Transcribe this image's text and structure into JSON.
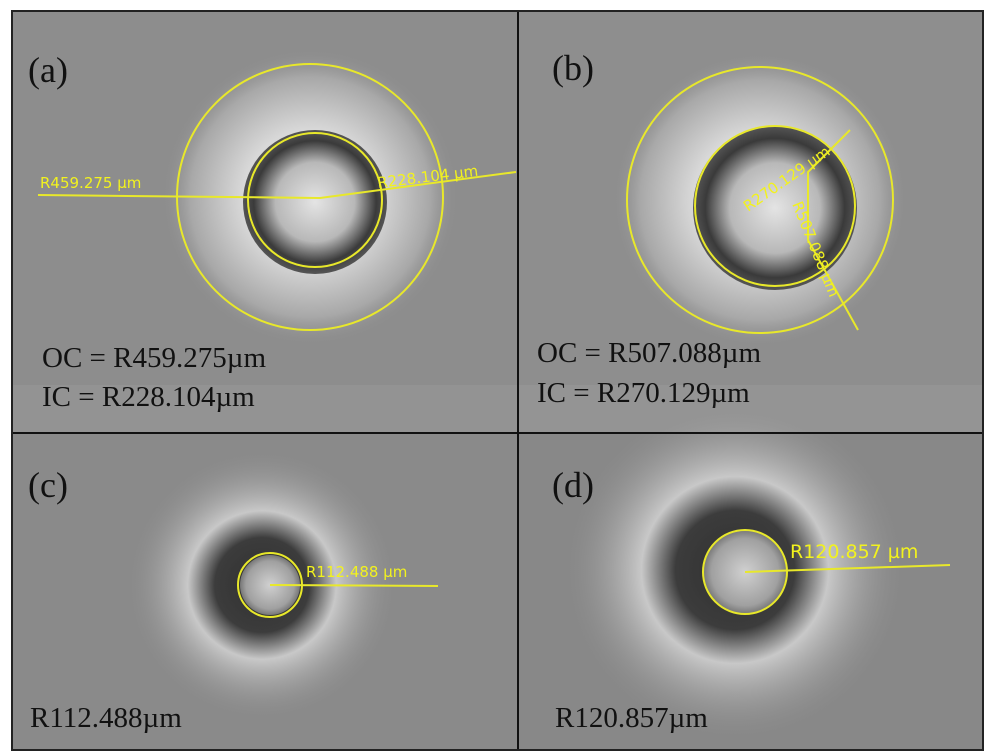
{
  "panels": [
    {
      "label": "(a)",
      "annotations": [
        "R459.275 µm",
        "R228.104 µm"
      ],
      "captions": [
        "OC = R459.275µm",
        "IC = R228.104µm"
      ]
    },
    {
      "label": "(b)",
      "annotations": [
        "R270.129 µm",
        "R507.088 µm"
      ],
      "captions": [
        "OC = R507.088µm",
        "IC = R270.129µm"
      ]
    },
    {
      "label": "(c)",
      "annotations": [
        "R112.488 µm"
      ],
      "captions": [
        "R112.488µm"
      ]
    },
    {
      "label": "(d)",
      "annotations": [
        "R120.857 µm"
      ],
      "captions": [
        "R120.857µm"
      ]
    }
  ]
}
